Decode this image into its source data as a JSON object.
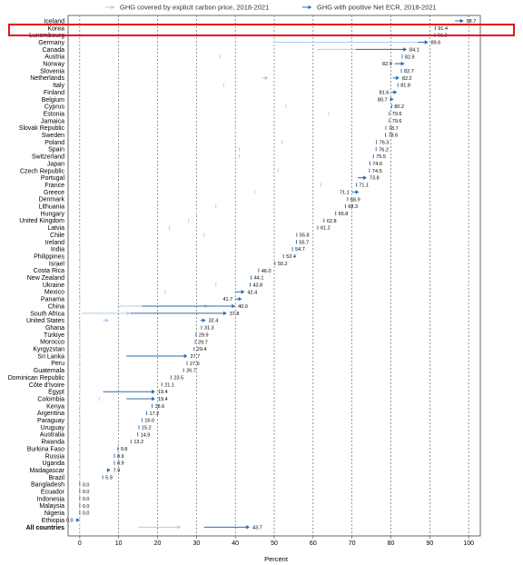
{
  "chart_data": {
    "type": "scatter",
    "title": "",
    "xlabel": "Percent",
    "ylabel": "",
    "xlim": [
      -3,
      103
    ],
    "xticks": [
      0,
      10,
      20,
      30,
      40,
      50,
      60,
      70,
      80,
      90,
      100
    ],
    "grid": "vertical dashed",
    "legend_position": "top",
    "colors": {
      "explicit_price": "#a9cdf0",
      "net_ecr": "#2e6ba8",
      "highlight": "#e8101a"
    },
    "highlighted_category": "Korea",
    "series": [
      {
        "name": "GHG covered by explicit carbon price, 2018-2021"
      },
      {
        "name": "GHG with positive Net ECR, 2018-2021"
      }
    ],
    "rows": [
      {
        "country": "Iceland",
        "label": "98.7",
        "net_ecr": [
          96.5,
          98.7
        ],
        "explicit": [
          96.5,
          98.7
        ]
      },
      {
        "country": "Korea",
        "label": "91.4",
        "net_ecr": [
          91.4,
          91.4
        ],
        "explicit": [
          91.4,
          91.4
        ]
      },
      {
        "country": "Luxembourg",
        "label": "91.3",
        "net_ecr": [
          91.3,
          91.3
        ],
        "explicit": [
          91.3,
          91.3
        ]
      },
      {
        "country": "Germany",
        "label": "89.6",
        "net_ecr": [
          87.0,
          89.6
        ],
        "explicit": [
          50.0,
          89.6
        ]
      },
      {
        "country": "Canada",
        "label": "84.1",
        "net_ecr": [
          71.0,
          84.1
        ],
        "explicit": [
          61.0,
          84.1
        ]
      },
      {
        "country": "Austria",
        "label": "82.9",
        "net_ecr": [
          82.9,
          82.9
        ],
        "explicit": [
          36.0,
          36.0
        ]
      },
      {
        "country": "Norway",
        "label": "82.9",
        "net_ecr": [
          81.0,
          83.5
        ],
        "explicit": [
          81.0,
          83.5
        ],
        "label_left": true
      },
      {
        "country": "Slovenia",
        "label": "82.7",
        "net_ecr": [
          82.7,
          82.7
        ],
        "explicit": [
          82.7,
          82.7
        ]
      },
      {
        "country": "Netherlands",
        "label": "82.2",
        "net_ecr": [
          80.5,
          82.2
        ],
        "explicit": [
          47.0,
          48.5
        ]
      },
      {
        "country": "Italy",
        "label": "81.8",
        "net_ecr": [
          81.8,
          81.8
        ],
        "explicit": [
          37.0,
          37.0
        ]
      },
      {
        "country": "Finland",
        "label": "81.6",
        "net_ecr": [
          80.2,
          81.6
        ],
        "explicit": [
          80.2,
          81.6
        ],
        "label_left": true
      },
      {
        "country": "Belgium",
        "label": "80.7",
        "net_ecr": [
          79.8,
          80.7
        ],
        "explicit": [
          79.8,
          80.7
        ],
        "label_left": true
      },
      {
        "country": "Cyprus",
        "label": "80.2",
        "net_ecr": [
          80.2,
          80.2
        ],
        "explicit": [
          53.0,
          53.0
        ]
      },
      {
        "country": "Estonia",
        "label": "79.6",
        "net_ecr": [
          79.6,
          79.6
        ],
        "explicit": [
          64.0,
          64.0
        ]
      },
      {
        "country": "Jamaica",
        "label": "79.6",
        "net_ecr": [
          79.6,
          79.6
        ],
        "explicit": [
          0,
          0
        ]
      },
      {
        "country": "Slovak Republic",
        "label": "78.7",
        "net_ecr": [
          78.7,
          78.7
        ],
        "explicit": [
          40.0,
          40.0
        ]
      },
      {
        "country": "Sweden",
        "label": "78.6",
        "net_ecr": [
          78.6,
          78.6
        ],
        "explicit": [
          78.6,
          78.6
        ]
      },
      {
        "country": "Poland",
        "label": "76.3",
        "net_ecr": [
          76.3,
          76.3
        ],
        "explicit": [
          52.0,
          52.0
        ]
      },
      {
        "country": "Spain",
        "label": "76.2",
        "net_ecr": [
          76.2,
          76.2
        ],
        "explicit": [
          41.0,
          41.0
        ]
      },
      {
        "country": "Switzerland",
        "label": "75.5",
        "net_ecr": [
          75.5,
          75.5
        ],
        "explicit": [
          41.0,
          41.0
        ]
      },
      {
        "country": "Japan",
        "label": "74.6",
        "net_ecr": [
          74.6,
          74.6
        ],
        "explicit": [
          74.6,
          74.6
        ]
      },
      {
        "country": "Czech Republic",
        "label": "74.5",
        "net_ecr": [
          74.5,
          74.5
        ],
        "explicit": [
          51.0,
          51.0
        ]
      },
      {
        "country": "Portugal",
        "label": "73.8",
        "net_ecr": [
          71.5,
          73.8
        ],
        "explicit": [
          71.5,
          73.8
        ]
      },
      {
        "country": "France",
        "label": "71.1",
        "net_ecr": [
          71.1,
          71.1
        ],
        "explicit": [
          62.0,
          62.0
        ]
      },
      {
        "country": "Greece",
        "label": "71.1",
        "net_ecr": [
          70.0,
          71.8
        ],
        "explicit": [
          45.0,
          45.0
        ],
        "label_left": true
      },
      {
        "country": "Denmark",
        "label": "68.9",
        "net_ecr": [
          68.9,
          68.9
        ],
        "explicit": [
          68.9,
          68.9
        ]
      },
      {
        "country": "Lithuania",
        "label": "68.3",
        "net_ecr": [
          68.3,
          68.3
        ],
        "explicit": [
          35.0,
          35.0
        ]
      },
      {
        "country": "Hungary",
        "label": "65.8",
        "net_ecr": [
          65.8,
          65.8
        ],
        "explicit": [
          30.0,
          30.0
        ]
      },
      {
        "country": "United Kingdom",
        "label": "62.8",
        "net_ecr": [
          62.8,
          62.8
        ],
        "explicit": [
          28.0,
          28.0
        ]
      },
      {
        "country": "Latvia",
        "label": "61.2",
        "net_ecr": [
          61.2,
          61.2
        ],
        "explicit": [
          23.0,
          23.0
        ]
      },
      {
        "country": "Chile",
        "label": "55.8",
        "net_ecr": [
          55.8,
          55.8
        ],
        "explicit": [
          32.0,
          32.0
        ]
      },
      {
        "country": "Ireland",
        "label": "55.7",
        "net_ecr": [
          55.7,
          55.7
        ],
        "explicit": [
          55.7,
          55.7
        ]
      },
      {
        "country": "India",
        "label": "54.7",
        "net_ecr": [
          54.7,
          54.7
        ],
        "explicit": [
          0,
          0
        ]
      },
      {
        "country": "Philippines",
        "label": "52.4",
        "net_ecr": [
          52.4,
          52.4
        ],
        "explicit": [
          0,
          0
        ]
      },
      {
        "country": "Israel",
        "label": "50.2",
        "net_ecr": [
          50.2,
          50.2
        ],
        "explicit": [
          0,
          0
        ]
      },
      {
        "country": "Costa Rica",
        "label": "46.0",
        "net_ecr": [
          46.0,
          46.0
        ],
        "explicit": [
          0,
          0
        ]
      },
      {
        "country": "New Zealand",
        "label": "44.1",
        "net_ecr": [
          44.1,
          44.1
        ],
        "explicit": [
          44.1,
          44.1
        ]
      },
      {
        "country": "Ukraine",
        "label": "43.8",
        "net_ecr": [
          43.8,
          43.8
        ],
        "explicit": [
          35.0,
          35.0
        ]
      },
      {
        "country": "Mexico",
        "label": "42.4",
        "net_ecr": [
          40.0,
          42.4
        ],
        "explicit": [
          22.0,
          22.0
        ]
      },
      {
        "country": "Panama",
        "label": "41.7",
        "net_ecr": [
          40.0,
          41.7
        ],
        "explicit": [
          0,
          0
        ],
        "label_left": true
      },
      {
        "country": "China",
        "label": "40.0",
        "net_ecr": [
          16.0,
          40.0
        ],
        "explicit": [
          9.5,
          33.0
        ]
      },
      {
        "country": "South Africa",
        "label": "37.8",
        "net_ecr": [
          13.0,
          37.8
        ],
        "explicit": [
          0.5,
          13.0
        ]
      },
      {
        "country": "United States",
        "label": "32.4",
        "net_ecr": [
          31.0,
          32.4
        ],
        "explicit": [
          6.0,
          7.5
        ]
      },
      {
        "country": "Ghana",
        "label": "31.3",
        "net_ecr": [
          31.3,
          31.3
        ],
        "explicit": [
          0,
          0
        ]
      },
      {
        "country": "Türkiye",
        "label": "29.9",
        "net_ecr": [
          29.9,
          29.9
        ],
        "explicit": [
          0,
          0
        ]
      },
      {
        "country": "Morocco",
        "label": "29.7",
        "net_ecr": [
          29.7,
          29.7
        ],
        "explicit": [
          0,
          0
        ]
      },
      {
        "country": "Kyrgyzstan",
        "label": "29.4",
        "net_ecr": [
          29.4,
          29.4
        ],
        "explicit": [
          0,
          0
        ]
      },
      {
        "country": "Sri Lanka",
        "label": "27.7",
        "net_ecr": [
          12.0,
          27.7
        ],
        "explicit": [
          0,
          0
        ]
      },
      {
        "country": "Peru",
        "label": "27.6",
        "net_ecr": [
          27.6,
          27.6
        ],
        "explicit": [
          0,
          0
        ]
      },
      {
        "country": "Guatemala",
        "label": "26.7",
        "net_ecr": [
          26.7,
          26.7
        ],
        "explicit": [
          0,
          0
        ]
      },
      {
        "country": "Dominican Republic",
        "label": "23.5",
        "net_ecr": [
          23.5,
          23.5
        ],
        "explicit": [
          0,
          0
        ]
      },
      {
        "country": "Côte d'Ivoire",
        "label": "21.1",
        "net_ecr": [
          21.1,
          21.1
        ],
        "explicit": [
          0,
          0
        ]
      },
      {
        "country": "Egypt",
        "label": "19.4",
        "net_ecr": [
          6.0,
          19.4
        ],
        "explicit": [
          0,
          0
        ]
      },
      {
        "country": "Colombia",
        "label": "19.4",
        "net_ecr": [
          12.0,
          19.4
        ],
        "explicit": [
          5.0,
          5.0
        ]
      },
      {
        "country": "Kenya",
        "label": "18.6",
        "net_ecr": [
          18.6,
          18.6
        ],
        "explicit": [
          0,
          0
        ]
      },
      {
        "country": "Argentina",
        "label": "17.2",
        "net_ecr": [
          17.2,
          17.2
        ],
        "explicit": [
          17.2,
          17.2
        ]
      },
      {
        "country": "Paraguay",
        "label": "16.0",
        "net_ecr": [
          16.0,
          16.0
        ],
        "explicit": [
          0,
          0
        ]
      },
      {
        "country": "Uruguay",
        "label": "15.2",
        "net_ecr": [
          15.2,
          15.2
        ],
        "explicit": [
          0,
          0
        ]
      },
      {
        "country": "Australia",
        "label": "14.9",
        "net_ecr": [
          14.9,
          14.9
        ],
        "explicit": [
          0,
          0
        ]
      },
      {
        "country": "Rwanda",
        "label": "13.2",
        "net_ecr": [
          13.2,
          13.2
        ],
        "explicit": [
          0,
          0
        ]
      },
      {
        "country": "Burkina Faso",
        "label": "9.8",
        "net_ecr": [
          9.8,
          9.8
        ],
        "explicit": [
          0,
          0
        ]
      },
      {
        "country": "Russia",
        "label": "8.9",
        "net_ecr": [
          8.9,
          8.9
        ],
        "explicit": [
          0,
          0
        ]
      },
      {
        "country": "Uganda",
        "label": "8.9",
        "net_ecr": [
          8.9,
          8.9
        ],
        "explicit": [
          0,
          0
        ]
      },
      {
        "country": "Madagascar",
        "label": "7.9",
        "net_ecr": [
          7.0,
          7.9
        ],
        "explicit": [
          0,
          0
        ]
      },
      {
        "country": "Brazil",
        "label": "5.9",
        "net_ecr": [
          5.9,
          5.9
        ],
        "explicit": [
          0,
          0
        ]
      },
      {
        "country": "Bangladesh",
        "label": "0.0",
        "net_ecr": [
          0,
          0
        ],
        "explicit": [
          0,
          0
        ]
      },
      {
        "country": "Ecuador",
        "label": "0.0",
        "net_ecr": [
          0,
          0
        ],
        "explicit": [
          0,
          0
        ]
      },
      {
        "country": "Indonesia",
        "label": "0.0",
        "net_ecr": [
          0,
          0
        ],
        "explicit": [
          0,
          0
        ]
      },
      {
        "country": "Malaysia",
        "label": "0.0",
        "net_ecr": [
          0,
          0
        ],
        "explicit": [
          0,
          0
        ]
      },
      {
        "country": "Nigeria",
        "label": "0.0",
        "net_ecr": [
          0,
          0
        ],
        "explicit": [
          0,
          0
        ]
      },
      {
        "country": "Ethiopia",
        "label": "0.0",
        "net_ecr": [
          -1.0,
          0
        ],
        "explicit": [
          0,
          0
        ],
        "label_left": true
      },
      {
        "country": "All countries",
        "label": "43.7",
        "net_ecr": [
          32.0,
          43.7
        ],
        "explicit": [
          15.0,
          26.0
        ],
        "bold": true
      }
    ]
  }
}
